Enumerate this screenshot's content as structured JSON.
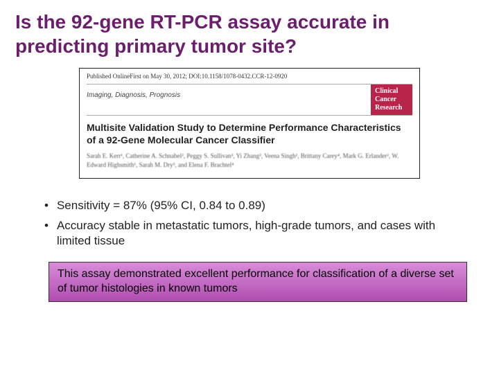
{
  "title": "Is the 92-gene RT-PCR assay accurate in predicting primary tumor site?",
  "paper": {
    "pub_line": "Published OnlineFirst on May 30, 2012; DOI:10.1158/1078-0432.CCR-12-0920",
    "section_label": "Imaging, Diagnosis, Prognosis",
    "journal_line1": "Clinical",
    "journal_line2": "Cancer",
    "journal_line3": "Research",
    "paper_title": "Multisite Validation Study to Determine Performance Characteristics of a 92-Gene Molecular Cancer Classifier",
    "authors": "Sarah E. Kerr¹, Catherine A. Schnabel², Peggy S. Sullivan³, Yi Zhang², Veena Singh², Brittany Carey⁴, Mark G. Erlander², W. Edward Highsmith¹, Sarah M. Dry³, and Elena F. Brachtel⁴"
  },
  "bullets": [
    "Sensitivity = 87% (95% CI, 0.84 to 0.89)",
    "Accuracy stable in metastatic tumors, high-grade tumors, and cases with limited tissue"
  ],
  "callout": "This assay demonstrated excellent performance for classification of a diverse set of tumor histologies in known tumors",
  "colors": {
    "title_color": "#6b1e6b",
    "journal_bg": "#b8254a",
    "callout_top": "#d98cd9",
    "callout_bottom": "#b04db0"
  }
}
